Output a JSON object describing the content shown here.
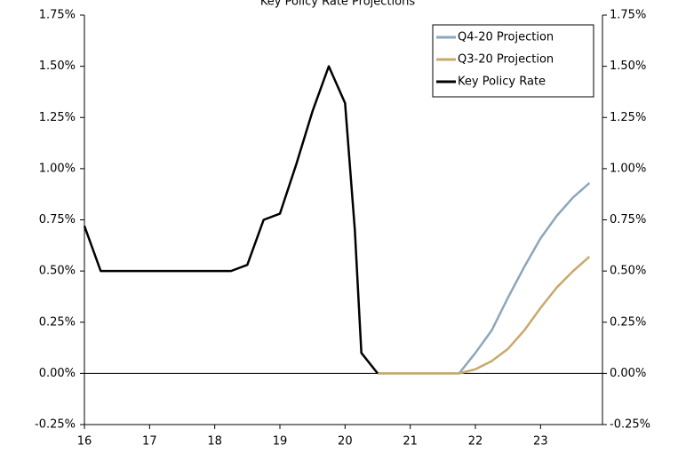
{
  "chart_data": {
    "type": "line",
    "title": "Key Policy Rate Projections",
    "series": [
      {
        "name": "Q4-20 Projection",
        "color": "#8ea6ba",
        "x": [
          20.5,
          20.75,
          21,
          21.25,
          21.5,
          21.75,
          22,
          22.25,
          22.5,
          22.75,
          23,
          23.25,
          23.5,
          23.75
        ],
        "values": [
          0,
          0,
          0,
          0,
          0,
          0,
          0.1,
          0.21,
          0.37,
          0.52,
          0.66,
          0.77,
          0.86,
          0.93
        ]
      },
      {
        "name": "Q3-20 Projection",
        "color": "#c9a96b",
        "x": [
          20.5,
          20.75,
          21,
          21.25,
          21.5,
          21.75,
          22,
          22.25,
          22.5,
          22.75,
          23,
          23.25,
          23.5,
          23.75
        ],
        "values": [
          0,
          0,
          0,
          0,
          0,
          0,
          0.02,
          0.06,
          0.12,
          0.21,
          0.32,
          0.42,
          0.5,
          0.57
        ]
      },
      {
        "name": "Key Policy Rate",
        "color": "#000000",
        "x": [
          16,
          16.25,
          18.25,
          18.5,
          18.75,
          19,
          19.25,
          19.5,
          19.75,
          20,
          20.15,
          20.25,
          20.5
        ],
        "values": [
          0.72,
          0.5,
          0.5,
          0.53,
          0.75,
          0.78,
          1.02,
          1.28,
          1.5,
          1.32,
          0.7,
          0.1,
          0
        ]
      }
    ],
    "xlim": [
      16,
      23.95
    ],
    "xticks": [
      16,
      17,
      18,
      19,
      20,
      21,
      22,
      23
    ],
    "ylim": [
      -0.25,
      1.75
    ],
    "yticks": [
      {
        "value": -0.25,
        "label": "-0.25%"
      },
      {
        "value": 0,
        "label": "0.00%"
      },
      {
        "value": 0.25,
        "label": "0.25%"
      },
      {
        "value": 0.5,
        "label": "0.50%"
      },
      {
        "value": 0.75,
        "label": "0.75%"
      },
      {
        "value": 1,
        "label": "1.00%"
      },
      {
        "value": 1.25,
        "label": "1.25%"
      },
      {
        "value": 1.5,
        "label": "1.50%"
      },
      {
        "value": 1.75,
        "label": "1.75%"
      }
    ],
    "legend": "upper right"
  }
}
